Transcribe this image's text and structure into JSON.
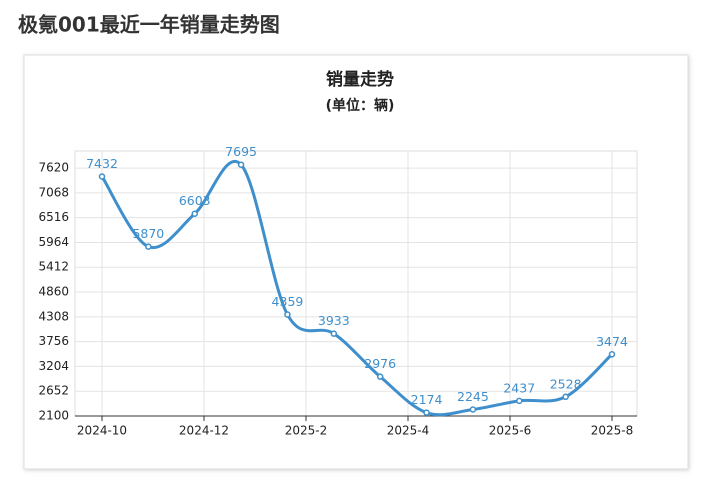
{
  "page_title": "极氪001最近一年销量走势图",
  "chart_data": {
    "type": "line",
    "title": "销量走势",
    "subtitle": "(单位：辆)",
    "x": [
      0,
      1,
      2,
      3,
      4,
      5,
      6,
      7,
      8,
      9,
      10,
      11
    ],
    "values": [
      7432,
      5870,
      6603,
      7695,
      4359,
      3933,
      2976,
      2174,
      2245,
      2437,
      2528,
      3474
    ],
    "color": "#3f8fcc",
    "smooth": true,
    "grid": true,
    "xlim": [
      0,
      11
    ],
    "xticks": [
      {
        "value": 0,
        "label": "2024-10"
      },
      {
        "value": 2.2,
        "label": "2024-12"
      },
      {
        "value": 4.4,
        "label": "2025-2"
      },
      {
        "value": 6.6,
        "label": "2025-4"
      },
      {
        "value": 8.8,
        "label": "2025-6"
      },
      {
        "value": 11,
        "label": "2025-8"
      }
    ],
    "ylim": [
      2100,
      8000
    ],
    "yticks": [
      2100,
      2652,
      3204,
      3756,
      4308,
      4860,
      5412,
      5964,
      6516,
      7068,
      7620
    ]
  }
}
